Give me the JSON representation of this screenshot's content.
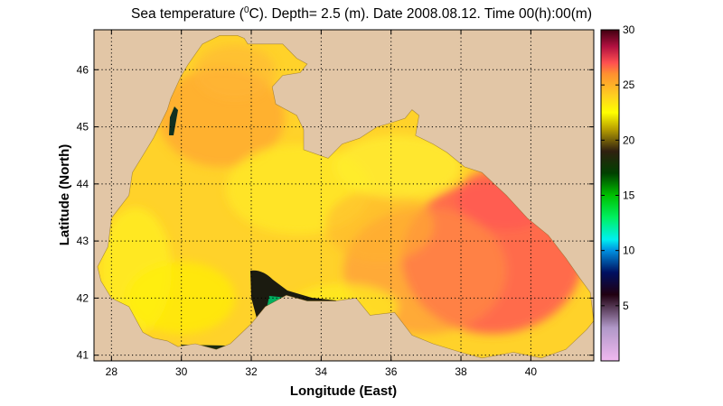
{
  "figure": {
    "title_parts": {
      "prefix": "Sea temperature (",
      "superscript": "0",
      "suffix": "C). Depth=  2.5 (m). Date 2008.08.12. Time 00(h):00(m)"
    },
    "xlabel": "Longitude (East)",
    "ylabel": "Latitude (North)",
    "colors": {
      "land": "#e2c6a6",
      "axes_frame": "#000000",
      "background": "#ffffff"
    }
  },
  "chart_data": {
    "type": "heatmap",
    "variable": "Sea temperature",
    "units": "°C",
    "depth_m": 2.5,
    "date": "2008.08.12",
    "time": "00(h):00(m)",
    "xlim": [
      27.5,
      41.8
    ],
    "ylim": [
      40.9,
      46.7
    ],
    "xticks": [
      28,
      30,
      32,
      34,
      36,
      38,
      40
    ],
    "yticks": [
      41,
      42,
      43,
      44,
      45,
      46
    ],
    "grid": true,
    "colorbar": {
      "range": [
        0,
        30
      ],
      "ticks": [
        5,
        10,
        15,
        20,
        25,
        30
      ],
      "stops": [
        {
          "v": 0,
          "c": "#f0b8f0"
        },
        {
          "v": 3,
          "c": "#b098c8"
        },
        {
          "v": 6,
          "c": "#200010"
        },
        {
          "v": 8,
          "c": "#001060"
        },
        {
          "v": 10,
          "c": "#0090e0"
        },
        {
          "v": 11,
          "c": "#00f0f0"
        },
        {
          "v": 13,
          "c": "#00f060"
        },
        {
          "v": 15,
          "c": "#00c000"
        },
        {
          "v": 17,
          "c": "#004000"
        },
        {
          "v": 19,
          "c": "#302010"
        },
        {
          "v": 21,
          "c": "#b8a000"
        },
        {
          "v": 22.5,
          "c": "#ffff00"
        },
        {
          "v": 24,
          "c": "#ffd020"
        },
        {
          "v": 26,
          "c": "#ff9030"
        },
        {
          "v": 27,
          "c": "#ff5050"
        },
        {
          "v": 28.5,
          "c": "#b01040"
        },
        {
          "v": 30,
          "c": "#400010"
        }
      ]
    },
    "regions": [
      {
        "name": "cold-coastal-strip-south",
        "value_range": [
          8,
          18
        ]
      },
      {
        "name": "warm-eastern-basin",
        "value_range": [
          25,
          27
        ]
      },
      {
        "name": "western-basin",
        "value_range": [
          22,
          25
        ]
      }
    ]
  }
}
